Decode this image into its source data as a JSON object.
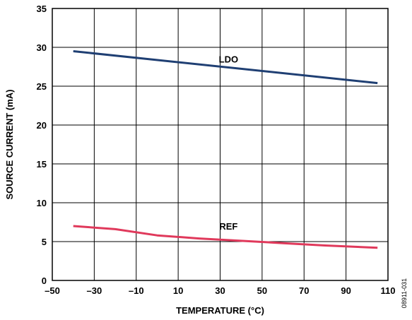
{
  "chart_data": {
    "type": "line",
    "title": "",
    "xlabel": "TEMPERATURE (°C)",
    "ylabel": "SOURCE CURRENT (mA)",
    "xlim": [
      -50,
      110
    ],
    "ylim": [
      0,
      35
    ],
    "x_ticks": [
      -50,
      -30,
      -10,
      10,
      30,
      50,
      70,
      90,
      110
    ],
    "x_tick_labels": [
      "–50",
      "–30",
      "–10",
      "10",
      "30",
      "50",
      "70",
      "90",
      "110"
    ],
    "y_ticks": [
      0,
      5,
      10,
      15,
      20,
      25,
      30,
      35
    ],
    "y_tick_labels": [
      "0",
      "5",
      "10",
      "15",
      "20",
      "25",
      "30",
      "35"
    ],
    "grid": true,
    "legend": "none",
    "series": [
      {
        "name": "LDO",
        "color": "#1f3f73",
        "x": [
          -40,
          105
        ],
        "y": [
          29.5,
          25.4
        ],
        "label_at": [
          34,
          28.5
        ]
      },
      {
        "name": "REF",
        "color": "#e0395b",
        "x": [
          -40,
          -20,
          0,
          20,
          40,
          60,
          80,
          105
        ],
        "y": [
          7.0,
          6.6,
          5.8,
          5.4,
          5.1,
          4.8,
          4.5,
          4.2
        ],
        "label_at": [
          34,
          7.0
        ]
      }
    ],
    "figure_id": "08911-031"
  }
}
